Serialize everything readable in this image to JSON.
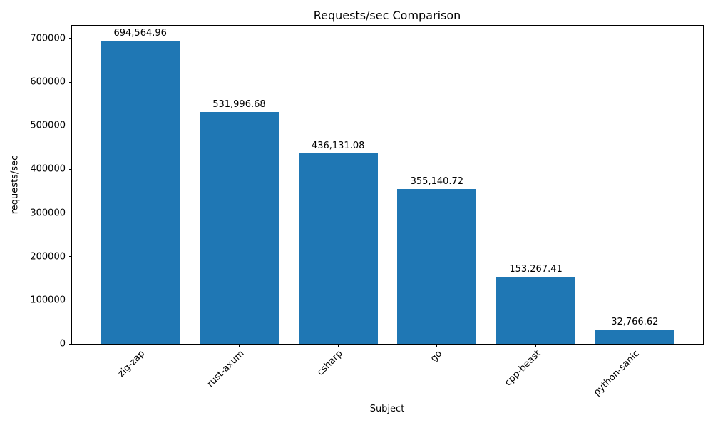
{
  "chart_data": {
    "type": "bar",
    "title": "Requests/sec Comparison",
    "xlabel": "Subject",
    "ylabel": "requests/sec",
    "categories": [
      "zig-zap",
      "rust-axum",
      "csharp",
      "go",
      "cpp-beast",
      "python-sanic"
    ],
    "values": [
      694564.96,
      531996.68,
      436131.08,
      355140.72,
      153267.41,
      32766.62
    ],
    "value_labels": [
      "694,564.96",
      "531,996.68",
      "436,131.08",
      "355,140.72",
      "153,267.41",
      "32,766.62"
    ],
    "yticks": [
      0,
      100000,
      200000,
      300000,
      400000,
      500000,
      600000,
      700000
    ],
    "ylim": [
      0,
      729293
    ],
    "bar_color": "#1f77b4",
    "bar_rel_width": 0.8,
    "grid": false,
    "legend": "none",
    "xtick_rotation": 45
  }
}
